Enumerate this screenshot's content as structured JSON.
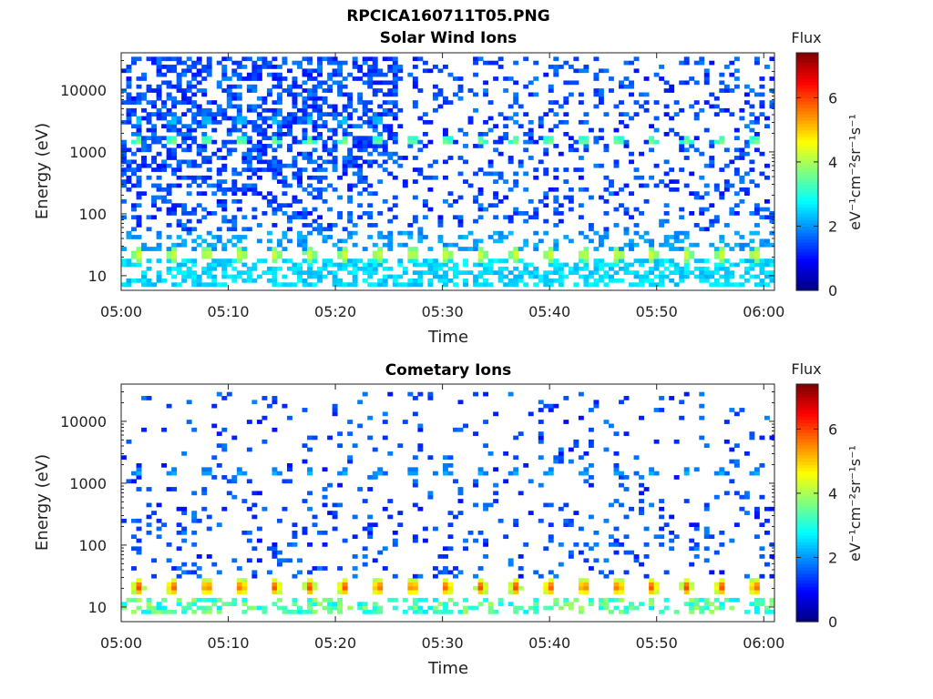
{
  "figure_title": "RPCICA160711T05.PNG",
  "chart_data": [
    {
      "type": "heatmap",
      "title": "Solar Wind Ions",
      "xlabel": "Time",
      "ylabel": "Energy (eV)",
      "x_range": [
        "05:00",
        "06:01"
      ],
      "x_ticks": [
        "05:00",
        "05:10",
        "05:20",
        "05:30",
        "05:40",
        "05:50",
        "06:00"
      ],
      "y_scale": "log",
      "y_range": [
        5.8,
        40000
      ],
      "y_ticks": [
        10,
        100,
        1000,
        10000
      ],
      "y_tick_labels": [
        "10",
        "100",
        "1000",
        "10000"
      ],
      "colorbar": {
        "title": "Flux",
        "unit": "eV⁻¹cm⁻²sr⁻¹s⁻¹",
        "range": [
          0,
          7.4
        ],
        "ticks": [
          0,
          2,
          4,
          6
        ],
        "colormap": "jet"
      },
      "sweep_period_min": 3.2,
      "band_change_time": "05:26",
      "features": [
        {
          "band": "solar wind peak",
          "energy_eV": 1500,
          "value": 3.5
        },
        {
          "band": "solar wind upper",
          "energy_eV": 3200,
          "value": 2.3
        },
        {
          "band": "low-energy peak",
          "energy_eV": 22,
          "value": 4.0
        },
        {
          "band": "low-energy base",
          "energy_eV": 13,
          "value": 2.3
        },
        {
          "band": "scattered background",
          "energy_range_eV": [
            60,
            30000
          ],
          "value": 1.3
        }
      ]
    },
    {
      "type": "heatmap",
      "title": "Cometary Ions",
      "xlabel": "Time",
      "ylabel": "Energy (eV)",
      "x_range": [
        "05:00",
        "06:01"
      ],
      "x_ticks": [
        "05:00",
        "05:10",
        "05:20",
        "05:30",
        "05:40",
        "05:50",
        "06:00"
      ],
      "y_scale": "log",
      "y_range": [
        5.8,
        40000
      ],
      "y_ticks": [
        10,
        100,
        1000,
        10000
      ],
      "y_tick_labels": [
        "10",
        "100",
        "1000",
        "10000"
      ],
      "colorbar": {
        "title": "Flux",
        "unit": "eV⁻¹cm⁻²sr⁻¹s⁻¹",
        "range": [
          0,
          7.4
        ],
        "ticks": [
          0,
          2,
          4,
          6
        ],
        "colormap": "jet"
      },
      "sweep_period_min": 3.2,
      "band_change_time": "05:26",
      "features": [
        {
          "band": "solar wind peak",
          "energy_eV": 1500,
          "value": 2.0
        },
        {
          "band": "cometary peak",
          "energy_eV": 21,
          "value": 5.8
        },
        {
          "band": "cometary base",
          "energy_eV": 13,
          "value": 3.5
        },
        {
          "band": "scattered background",
          "energy_range_eV": [
            30,
            25000
          ],
          "value": 1.4
        }
      ]
    }
  ]
}
